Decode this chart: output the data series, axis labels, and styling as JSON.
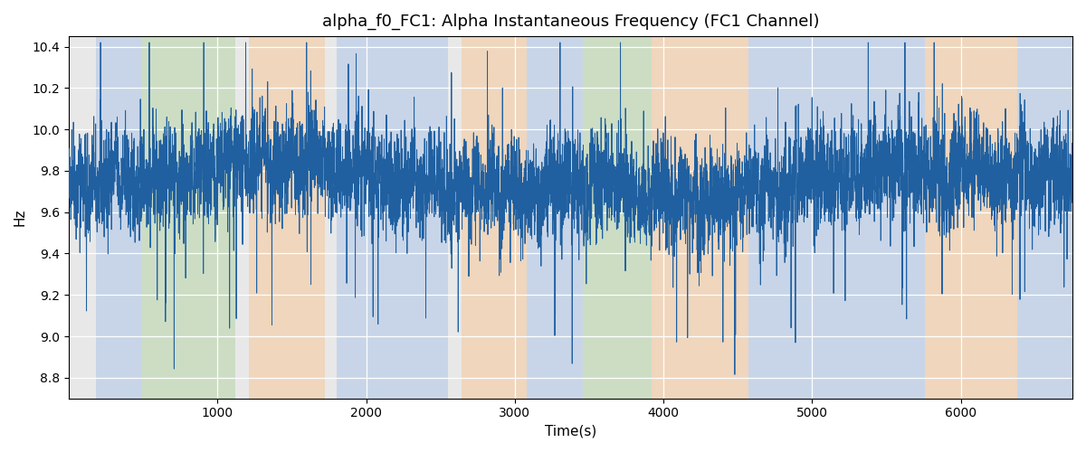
{
  "title": "alpha_f0_FC1: Alpha Instantaneous Frequency (FC1 Channel)",
  "xlabel": "Time(s)",
  "ylabel": "Hz",
  "ylim": [
    8.7,
    10.45
  ],
  "xlim": [
    0,
    6750
  ],
  "line_color": "#2060a0",
  "line_width": 0.7,
  "seed": 42,
  "n_points": 6700,
  "base_freq": 9.75,
  "facecolor": "#e8e8e8",
  "bands": [
    {
      "start": 185,
      "end": 490,
      "color": "#aec6e8",
      "alpha": 0.55
    },
    {
      "start": 490,
      "end": 1120,
      "color": "#b5d5a8",
      "alpha": 0.55
    },
    {
      "start": 1210,
      "end": 1720,
      "color": "#f5c89a",
      "alpha": 0.55
    },
    {
      "start": 1800,
      "end": 2550,
      "color": "#aec6e8",
      "alpha": 0.55
    },
    {
      "start": 2640,
      "end": 3080,
      "color": "#f5c89a",
      "alpha": 0.55
    },
    {
      "start": 3080,
      "end": 3460,
      "color": "#aec6e8",
      "alpha": 0.55
    },
    {
      "start": 3460,
      "end": 3920,
      "color": "#b5d5a8",
      "alpha": 0.55
    },
    {
      "start": 3920,
      "end": 4570,
      "color": "#f5c89a",
      "alpha": 0.55
    },
    {
      "start": 4570,
      "end": 5760,
      "color": "#aec6e8",
      "alpha": 0.55
    },
    {
      "start": 5760,
      "end": 6380,
      "color": "#f5c89a",
      "alpha": 0.55
    },
    {
      "start": 6380,
      "end": 6750,
      "color": "#aec6e8",
      "alpha": 0.55
    }
  ],
  "xticks": [
    1000,
    2000,
    3000,
    4000,
    5000,
    6000
  ],
  "yticks": [
    8.8,
    9.0,
    9.2,
    9.4,
    9.6,
    9.8,
    10.0,
    10.2,
    10.4
  ]
}
